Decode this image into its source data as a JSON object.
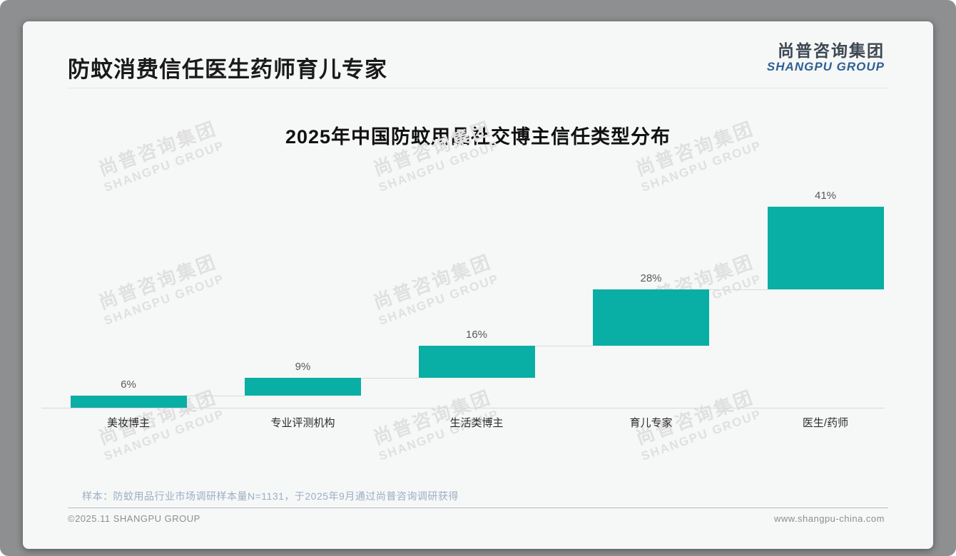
{
  "page": {
    "title": "防蚊消费信任医生药师育儿专家",
    "logo": {
      "cn": "尚普咨询集团",
      "en": "SHANGPU GROUP"
    },
    "watermark": {
      "line1": "尚普咨询集团",
      "line2": "SHANGPU GROUP"
    },
    "note": "样本：防蚊用品行业市场调研样本量N=1131，于2025年9月通过尚普咨询调研获得",
    "footer": {
      "copyright": "©2025.11 SHANGPU GROUP",
      "website": "www.shangpu-china.com"
    }
  },
  "chart_data": {
    "type": "bar",
    "subtype": "waterfall-steps",
    "title": "2025年中国防蚊用品社交博主信任类型分布",
    "categories": [
      "美妆博主",
      "专业评测机构",
      "生活类博主",
      "育儿专家",
      "医生/药师"
    ],
    "values": [
      6,
      9,
      16,
      28,
      41
    ],
    "value_labels": [
      "6%",
      "9%",
      "16%",
      "28%",
      "41%"
    ],
    "unit": "%",
    "cumulative_total": 100,
    "bar_color": "#09aea4",
    "axis_line_color": "#d9d9d9",
    "ylim": [
      0,
      100
    ],
    "grid": false,
    "legend": false
  },
  "colors": {
    "accent_teal": "#09aea4",
    "logo_blue": "#2d6094",
    "logo_dark": "#3c4852",
    "note_blue_gray": "#9bafc2",
    "watermark_gray": "#e0e0e1"
  }
}
